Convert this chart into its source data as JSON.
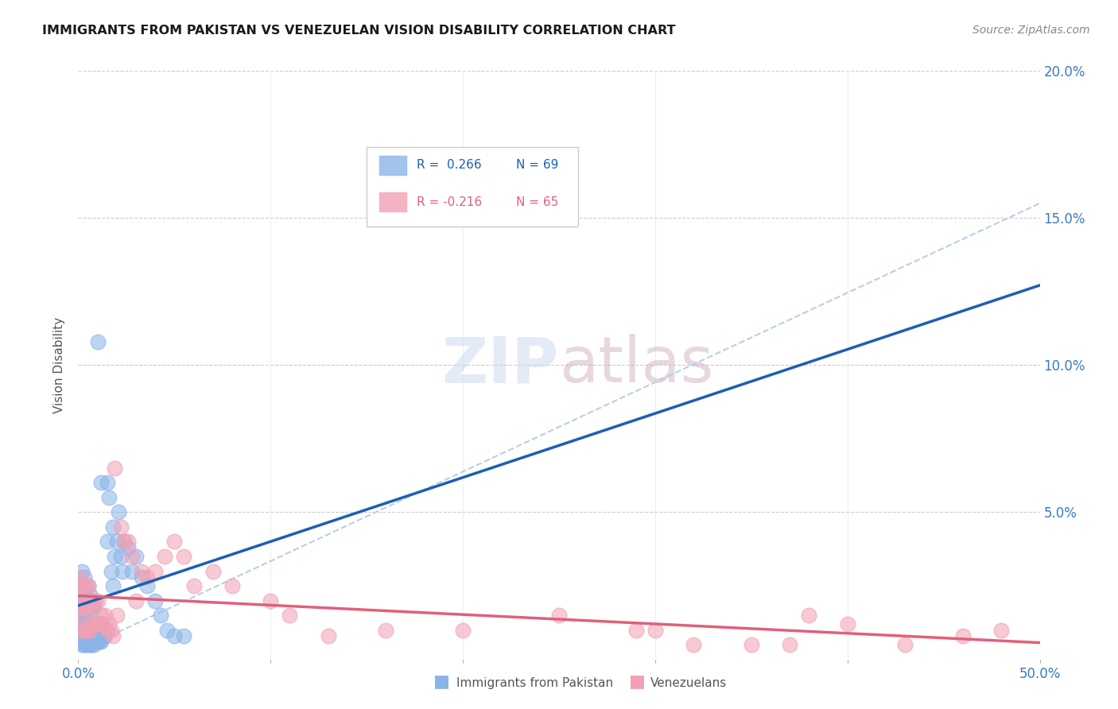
{
  "title": "IMMIGRANTS FROM PAKISTAN VS VENEZUELAN VISION DISABILITY CORRELATION CHART",
  "source": "Source: ZipAtlas.com",
  "ylabel": "Vision Disability",
  "pakistan_color": "#8ab4e8",
  "venezuela_color": "#f2a0b5",
  "pakistan_line_color": "#1a5fb4",
  "venezuela_line_color": "#e0607a",
  "dashed_line_color": "#b8cfe8",
  "background_color": "#ffffff",
  "watermark_zip": "ZIP",
  "watermark_atlas": "atlas",
  "legend_r1_label": "R = ",
  "legend_r1_val": "0.266",
  "legend_r1_n": "N = 69",
  "legend_r2_label": "R = ",
  "legend_r2_val": "-0.216",
  "legend_r2_n": "N = 65",
  "pakistan_color_legend": "#8ab4e8",
  "venezuela_color_legend": "#f2a0b5",
  "pakistan_points_x": [
    0.001,
    0.001,
    0.001,
    0.001,
    0.002,
    0.002,
    0.002,
    0.002,
    0.002,
    0.002,
    0.003,
    0.003,
    0.003,
    0.003,
    0.003,
    0.003,
    0.004,
    0.004,
    0.004,
    0.004,
    0.005,
    0.005,
    0.005,
    0.005,
    0.005,
    0.006,
    0.006,
    0.006,
    0.006,
    0.007,
    0.007,
    0.007,
    0.008,
    0.008,
    0.008,
    0.009,
    0.009,
    0.01,
    0.01,
    0.011,
    0.011,
    0.012,
    0.012,
    0.013,
    0.014,
    0.015,
    0.015,
    0.016,
    0.017,
    0.018,
    0.019,
    0.02,
    0.021,
    0.022,
    0.024,
    0.026,
    0.028,
    0.03,
    0.033,
    0.036,
    0.04,
    0.043,
    0.046,
    0.01,
    0.012,
    0.018,
    0.023,
    0.05,
    0.055
  ],
  "pakistan_points_y": [
    0.008,
    0.012,
    0.018,
    0.025,
    0.005,
    0.01,
    0.015,
    0.02,
    0.025,
    0.03,
    0.005,
    0.008,
    0.012,
    0.018,
    0.022,
    0.028,
    0.005,
    0.01,
    0.015,
    0.02,
    0.005,
    0.008,
    0.012,
    0.018,
    0.025,
    0.005,
    0.01,
    0.015,
    0.022,
    0.005,
    0.01,
    0.018,
    0.005,
    0.01,
    0.018,
    0.006,
    0.012,
    0.006,
    0.012,
    0.006,
    0.012,
    0.006,
    0.012,
    0.008,
    0.008,
    0.06,
    0.04,
    0.055,
    0.03,
    0.045,
    0.035,
    0.04,
    0.05,
    0.035,
    0.04,
    0.038,
    0.03,
    0.035,
    0.028,
    0.025,
    0.02,
    0.015,
    0.01,
    0.108,
    0.06,
    0.025,
    0.03,
    0.008,
    0.008
  ],
  "venezuela_points_x": [
    0.001,
    0.001,
    0.001,
    0.002,
    0.002,
    0.002,
    0.003,
    0.003,
    0.003,
    0.004,
    0.004,
    0.004,
    0.005,
    0.005,
    0.005,
    0.006,
    0.006,
    0.007,
    0.007,
    0.008,
    0.008,
    0.009,
    0.009,
    0.01,
    0.01,
    0.011,
    0.012,
    0.013,
    0.014,
    0.015,
    0.016,
    0.017,
    0.018,
    0.019,
    0.02,
    0.022,
    0.024,
    0.026,
    0.028,
    0.03,
    0.033,
    0.036,
    0.04,
    0.045,
    0.05,
    0.055,
    0.06,
    0.07,
    0.08,
    0.1,
    0.11,
    0.13,
    0.16,
    0.2,
    0.25,
    0.29,
    0.32,
    0.37,
    0.4,
    0.43,
    0.46,
    0.48,
    0.35,
    0.3,
    0.38
  ],
  "venezuela_points_y": [
    0.015,
    0.02,
    0.028,
    0.01,
    0.018,
    0.025,
    0.01,
    0.018,
    0.025,
    0.01,
    0.018,
    0.025,
    0.01,
    0.018,
    0.025,
    0.01,
    0.018,
    0.012,
    0.02,
    0.012,
    0.02,
    0.012,
    0.02,
    0.012,
    0.02,
    0.012,
    0.015,
    0.012,
    0.015,
    0.01,
    0.012,
    0.01,
    0.008,
    0.065,
    0.015,
    0.045,
    0.04,
    0.04,
    0.035,
    0.02,
    0.03,
    0.028,
    0.03,
    0.035,
    0.04,
    0.035,
    0.025,
    0.03,
    0.025,
    0.02,
    0.015,
    0.008,
    0.01,
    0.01,
    0.015,
    0.01,
    0.005,
    0.005,
    0.012,
    0.005,
    0.008,
    0.01,
    0.005,
    0.01,
    0.015
  ]
}
